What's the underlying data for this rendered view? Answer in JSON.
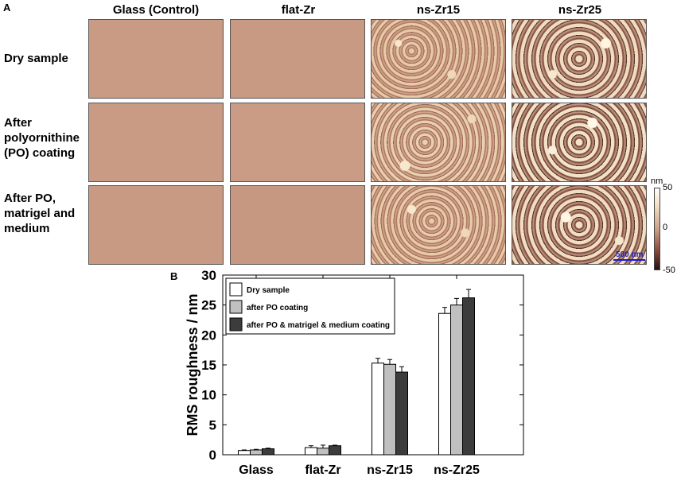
{
  "panel_a": {
    "letter": "A",
    "columns": [
      "Glass (Control)",
      "flat-Zr",
      "ns-Zr15",
      "ns-Zr25"
    ],
    "rows": [
      "Dry sample",
      "After polyornithine (PO) coating",
      "After PO, matrigel and medium"
    ],
    "colorbar": {
      "unit": "nm",
      "max": "50",
      "mid": "0",
      "min": "-50"
    },
    "scale_bar": "500 nm",
    "colors": {
      "smooth": "#c99a84",
      "rough_low": "#3a1a14",
      "rough_high": "#fff5e0"
    }
  },
  "panel_b": {
    "letter": "B"
  },
  "chart_data": {
    "type": "bar",
    "categories": [
      "Glass",
      "flat-Zr",
      "ns-Zr15",
      "ns-Zr25"
    ],
    "series": [
      {
        "name": "Dry sample",
        "values": [
          0.7,
          1.2,
          15.3,
          23.6
        ],
        "errors": [
          0.1,
          0.3,
          0.8,
          1.0
        ],
        "color": "#ffffff"
      },
      {
        "name": "after PO coating",
        "values": [
          0.8,
          1.1,
          15.1,
          25.0
        ],
        "errors": [
          0.1,
          0.5,
          0.8,
          1.1
        ],
        "color": "#c0c0c0"
      },
      {
        "name": "after PO & matrigel & medium coating",
        "values": [
          1.0,
          1.5,
          13.8,
          26.2
        ],
        "errors": [
          0.1,
          0.1,
          0.9,
          1.4
        ],
        "color": "#3c3c3c"
      }
    ],
    "ylabel": "RMS roughness / nm",
    "xlabel": "",
    "ylim": [
      0,
      30
    ],
    "yticks": [
      0,
      5,
      10,
      15,
      20,
      25,
      30
    ],
    "grid": false,
    "legend_position": "top-left"
  }
}
